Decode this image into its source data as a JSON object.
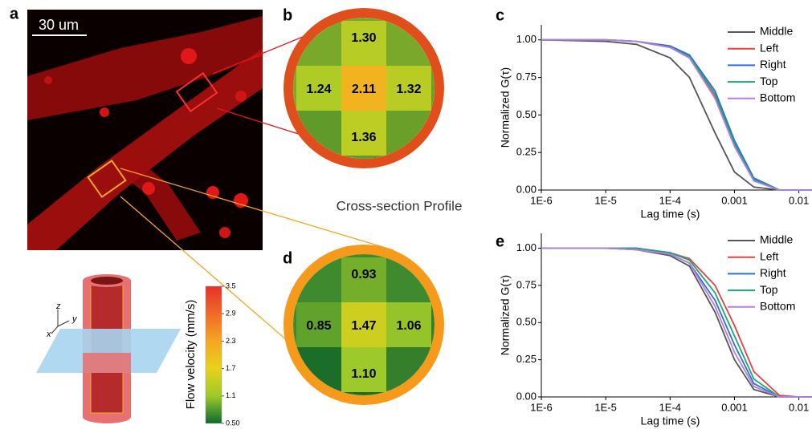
{
  "panel_labels": [
    "a",
    "b",
    "c",
    "d",
    "e"
  ],
  "image": {
    "scale_bar": "30 um"
  },
  "diagram": {
    "axes": [
      "z",
      "y",
      "x"
    ]
  },
  "cross_section_title": "Cross-section Profile",
  "colorbar": {
    "label": "Flow velocity (mm/s)",
    "lim": [
      0.5,
      3.5
    ],
    "ticks": [
      3.5,
      2.9,
      2.3,
      1.7,
      1.1,
      {
        "value": 0.5,
        "label": "0.50"
      }
    ]
  },
  "cross_sections": [
    {
      "cells": [
        {
          "position": "top",
          "value": 1.3,
          "label": "1.30"
        },
        {
          "position": "left",
          "value": 1.24,
          "label": "1.24"
        },
        {
          "position": "center",
          "value": 2.11,
          "label": "2.11"
        },
        {
          "position": "right",
          "value": 1.32,
          "label": "1.32"
        },
        {
          "position": "bottom",
          "value": 1.36,
          "label": "1.36"
        }
      ]
    },
    {
      "cells": [
        {
          "position": "top",
          "value": 0.93,
          "label": "0.93"
        },
        {
          "position": "left",
          "value": 0.85,
          "label": "0.85"
        },
        {
          "position": "center",
          "value": 1.47,
          "label": "1.47"
        },
        {
          "position": "right",
          "value": 1.06,
          "label": "1.06"
        },
        {
          "position": "bottom",
          "value": 1.1,
          "label": "1.10"
        }
      ]
    }
  ],
  "chart_data": [
    {
      "type": "line",
      "xlabel": "Lag time (s)",
      "ylabel": "Normalized G(τ)",
      "xscale": "log",
      "x": [
        1e-06,
        1e-05,
        3e-05,
        0.0001,
        0.0002,
        0.0005,
        0.001,
        0.002,
        0.005,
        0.01,
        0.016
      ],
      "xlim": [
        1e-06,
        0.016
      ],
      "xticks": [
        {
          "value": 1e-06,
          "label": "1E-6"
        },
        {
          "value": 1e-05,
          "label": "1E-5"
        },
        {
          "value": 0.0001,
          "label": "1E-4"
        },
        0.001,
        0.01
      ],
      "ylim": [
        0,
        1.1
      ],
      "yticks": [
        {
          "value": 0,
          "label": "0.00"
        },
        {
          "value": 0.25,
          "label": "0.25"
        },
        {
          "value": 0.5,
          "label": "0.50"
        },
        {
          "value": 0.75,
          "label": "0.75"
        },
        {
          "value": 1,
          "label": "1.00"
        }
      ],
      "legend": "upper right",
      "series": [
        {
          "name": "Middle",
          "color": "#555555",
          "values": [
            1.0,
            0.99,
            0.97,
            0.88,
            0.75,
            0.38,
            0.12,
            0.02,
            0.0,
            0.0,
            0.0
          ]
        },
        {
          "name": "Left",
          "color": "#e8413c",
          "values": [
            1.0,
            1.0,
            0.99,
            0.95,
            0.88,
            0.62,
            0.3,
            0.07,
            0.0,
            0.0,
            0.0
          ]
        },
        {
          "name": "Right",
          "color": "#2e6fd6",
          "values": [
            1.0,
            1.0,
            0.99,
            0.96,
            0.9,
            0.66,
            0.33,
            0.08,
            0.0,
            0.0,
            0.0
          ]
        },
        {
          "name": "Top",
          "color": "#1aa67a",
          "values": [
            1.0,
            1.0,
            0.99,
            0.95,
            0.89,
            0.64,
            0.31,
            0.07,
            0.0,
            0.0,
            0.0
          ]
        },
        {
          "name": "Bottom",
          "color": "#b77ee0",
          "values": [
            1.0,
            1.0,
            0.99,
            0.95,
            0.88,
            0.61,
            0.29,
            0.06,
            0.0,
            0.0,
            0.0
          ]
        }
      ]
    },
    {
      "type": "line",
      "xlabel": "Lag time (s)",
      "ylabel": "Normalized G(τ)",
      "xscale": "log",
      "x": [
        1e-06,
        1e-05,
        3e-05,
        0.0001,
        0.0002,
        0.0005,
        0.001,
        0.002,
        0.005,
        0.01,
        0.016
      ],
      "xlim": [
        1e-06,
        0.016
      ],
      "xticks": [
        {
          "value": 1e-06,
          "label": "1E-6"
        },
        {
          "value": 1e-05,
          "label": "1E-5"
        },
        {
          "value": 0.0001,
          "label": "1E-4"
        },
        0.001,
        0.01
      ],
      "ylim": [
        0,
        1.1
      ],
      "yticks": [
        {
          "value": 0,
          "label": "0.00"
        },
        {
          "value": 0.25,
          "label": "0.25"
        },
        {
          "value": 0.5,
          "label": "0.50"
        },
        {
          "value": 0.75,
          "label": "0.75"
        },
        {
          "value": 1,
          "label": "1.00"
        }
      ],
      "legend": "upper right",
      "series": [
        {
          "name": "Middle",
          "color": "#555555",
          "values": [
            1.0,
            1.0,
            0.99,
            0.95,
            0.88,
            0.57,
            0.25,
            0.05,
            0.0,
            0.0,
            0.0
          ]
        },
        {
          "name": "Left",
          "color": "#e8413c",
          "values": [
            1.0,
            1.0,
            1.0,
            0.97,
            0.93,
            0.75,
            0.48,
            0.17,
            0.01,
            0.0,
            0.0
          ]
        },
        {
          "name": "Right",
          "color": "#2e6fd6",
          "values": [
            1.0,
            1.0,
            0.99,
            0.96,
            0.9,
            0.65,
            0.35,
            0.09,
            0.0,
            0.0,
            0.0
          ]
        },
        {
          "name": "Top",
          "color": "#1aa67a",
          "values": [
            1.0,
            1.0,
            1.0,
            0.97,
            0.92,
            0.7,
            0.41,
            0.12,
            0.0,
            0.0,
            0.0
          ]
        },
        {
          "name": "Bottom",
          "color": "#b77ee0",
          "values": [
            1.0,
            1.0,
            0.99,
            0.96,
            0.9,
            0.61,
            0.3,
            0.07,
            0.0,
            0.0,
            0.0
          ]
        }
      ]
    }
  ]
}
